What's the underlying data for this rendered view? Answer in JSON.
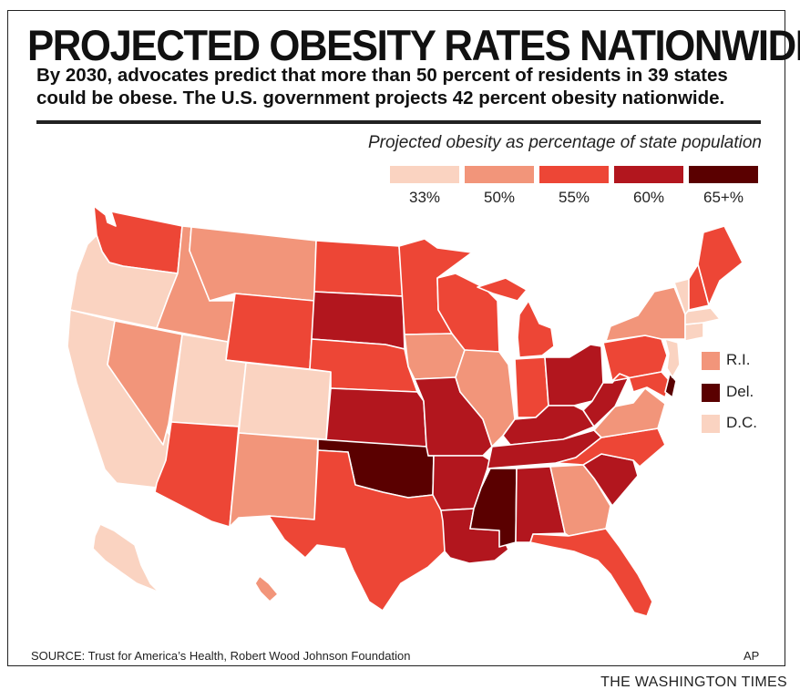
{
  "title": "PROJECTED OBESITY RATES NATIONWIDE",
  "subtitle": "By 2030, advocates predict that more than 50 percent of residents in 39 states could be obese. The U.S. government projects 42 percent obesity nationwide.",
  "legend": {
    "title": "Projected obesity as percentage of state population",
    "items": [
      {
        "label": "33%",
        "color": "#fad3c1"
      },
      {
        "label": "50%",
        "color": "#f2957a"
      },
      {
        "label": "55%",
        "color": "#ed4636"
      },
      {
        "label": "60%",
        "color": "#b2161e"
      },
      {
        "label": "65+%",
        "color": "#5a0000"
      }
    ]
  },
  "small_states": [
    {
      "label": "R.I.",
      "color": "#f2957a"
    },
    {
      "label": "Del.",
      "color": "#5a0000"
    },
    {
      "label": "D.C.",
      "color": "#fad3c1"
    }
  ],
  "source": "SOURCE: Trust for America’s Health, Robert Wood Johnson Foundation",
  "credit": "AP",
  "publisher": "THE WASHINGTON TIMES",
  "states": {
    "WA": "#ed4636",
    "OR": "#fad3c1",
    "CA": "#fad3c1",
    "NV": "#f2957a",
    "ID": "#f2957a",
    "MT": "#f2957a",
    "WY": "#ed4636",
    "UT": "#fad3c1",
    "CO": "#fad3c1",
    "AZ": "#ed4636",
    "NM": "#f2957a",
    "ND": "#ed4636",
    "SD": "#b2161e",
    "NE": "#ed4636",
    "KS": "#b2161e",
    "OK": "#5a0000",
    "TX": "#ed4636",
    "MN": "#ed4636",
    "IA": "#f2957a",
    "MO": "#b2161e",
    "AR": "#b2161e",
    "LA": "#b2161e",
    "WI": "#ed4636",
    "IL": "#f2957a",
    "MI": "#ed4636",
    "IN": "#ed4636",
    "OH": "#b2161e",
    "KY": "#b2161e",
    "TN": "#b2161e",
    "MS": "#5a0000",
    "AL": "#b2161e",
    "GA": "#f2957a",
    "FL": "#ed4636",
    "SC": "#b2161e",
    "NC": "#ed4636",
    "VA": "#f2957a",
    "WV": "#b2161e",
    "PA": "#ed4636",
    "NY": "#f2957a",
    "VT": "#fad3c1",
    "NH": "#ed4636",
    "ME": "#ed4636",
    "MA": "#fad3c1",
    "CT": "#fad3c1",
    "NJ": "#fad3c1",
    "MD": "#ed4636",
    "DE": "#5a0000",
    "AK": "#fad3c1",
    "HI": "#f2957a"
  }
}
